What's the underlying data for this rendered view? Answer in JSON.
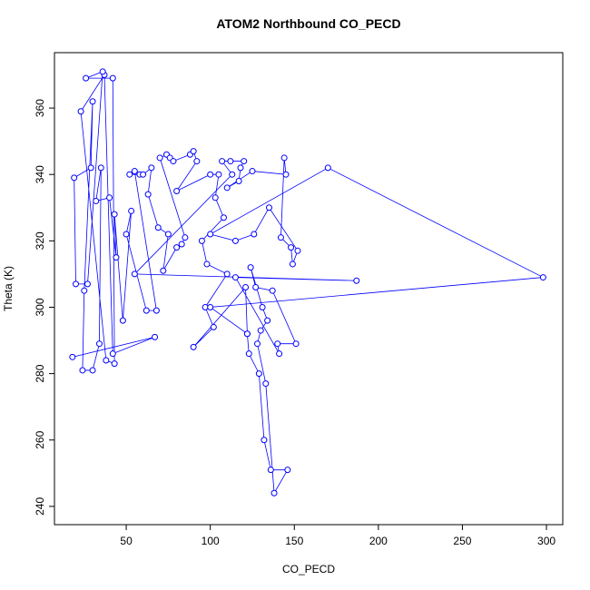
{
  "chart_data": {
    "type": "line",
    "title": "ATOM2 Northbound CO_PECD",
    "xlabel": "CO_PECD",
    "ylabel": "Theta (K)",
    "color": "#0000ff",
    "x": [
      18,
      67,
      42,
      37,
      23,
      38,
      43,
      42,
      26,
      36,
      27,
      20,
      19,
      29,
      30,
      25,
      24,
      30,
      34,
      35,
      32,
      40,
      44,
      43,
      48,
      53,
      50,
      62,
      68,
      55,
      52,
      58,
      60,
      65,
      63,
      69,
      75,
      72,
      80,
      83,
      85,
      70,
      74,
      76,
      78,
      88,
      90,
      92,
      80,
      100,
      105,
      103,
      108,
      95,
      98,
      110,
      97,
      102,
      90,
      121,
      122,
      123,
      129,
      132,
      136,
      146,
      138,
      133,
      128,
      130,
      134,
      131,
      124,
      127,
      137,
      151,
      140,
      141,
      115,
      187,
      55,
      113,
      107,
      112,
      120,
      118,
      117,
      110,
      125,
      145,
      144,
      142,
      148,
      149,
      152,
      135,
      126,
      115,
      100,
      170,
      298,
      100,
      122
    ],
    "values": [
      285,
      291,
      286,
      370,
      359,
      284,
      283,
      369,
      369,
      371,
      307,
      307,
      339,
      342,
      362,
      305,
      281,
      281,
      289,
      342,
      332,
      333,
      315,
      328,
      296,
      329,
      322,
      299,
      299,
      341,
      340,
      340,
      340,
      342,
      334,
      324,
      322,
      311,
      318,
      319,
      321,
      345,
      346,
      345,
      344,
      346,
      347,
      344,
      335,
      340,
      340,
      333,
      327,
      320,
      313,
      310,
      300,
      294,
      288,
      306,
      292,
      286,
      280,
      260,
      251,
      251,
      244,
      277,
      289,
      293,
      296,
      300,
      312,
      306,
      305,
      289,
      289,
      286,
      309,
      308,
      310,
      340,
      344,
      344,
      344,
      342,
      338,
      336,
      341,
      340,
      345,
      321,
      318,
      313,
      317,
      330,
      322,
      320,
      322,
      342,
      309,
      300,
      292
    ],
    "xlim": [
      7.3,
      309.7
    ],
    "ylim": [
      234.5,
      376.7
    ],
    "xticks": [
      50,
      100,
      150,
      200,
      250,
      300
    ],
    "yticks": [
      240,
      260,
      280,
      300,
      320,
      340,
      360
    ]
  }
}
